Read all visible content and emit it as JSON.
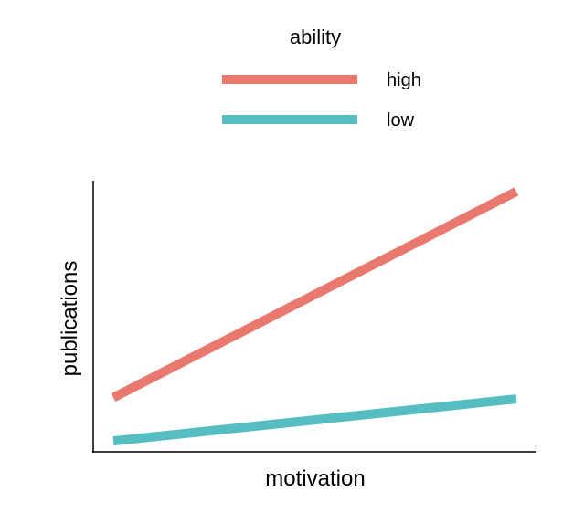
{
  "chart_data": {
    "type": "line",
    "title": "",
    "xlabel": "motivation",
    "ylabel": "publications",
    "xlim": [
      -0.05,
      1.05
    ],
    "ylim": [
      0,
      1
    ],
    "grid": false,
    "ticks": false,
    "legend": {
      "title": "ability",
      "placement": "top"
    },
    "x": [
      0,
      1
    ],
    "series": [
      {
        "name": "high",
        "color": "#E9786F",
        "values": [
          0.2,
          0.96
        ]
      },
      {
        "name": "low",
        "color": "#56BEC3",
        "values": [
          0.04,
          0.195
        ]
      }
    ]
  }
}
